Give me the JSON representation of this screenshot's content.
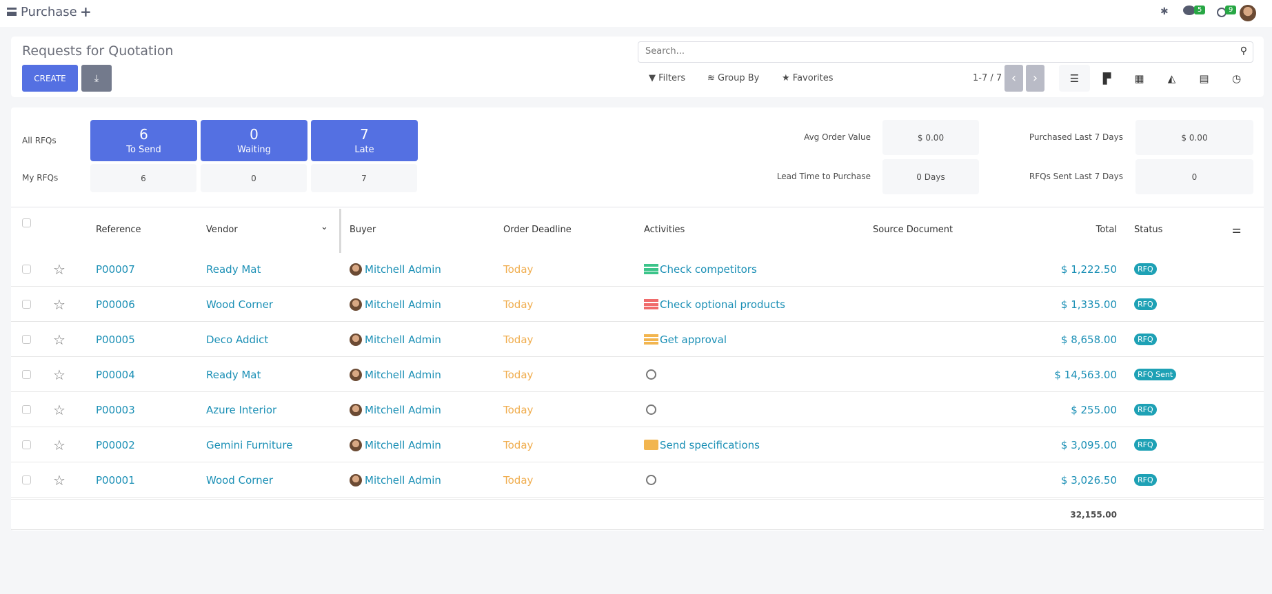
{
  "topbar": {
    "app_title": "Purchase",
    "notifications": {
      "messages": "5",
      "activities": "9"
    }
  },
  "control_panel": {
    "title": "Requests for Quotation",
    "create_label": "CREATE",
    "search_placeholder": "Search...",
    "filters_label": "Filters",
    "group_by_label": "Group By",
    "favorites_label": "Favorites",
    "pager": "1-7 / 7",
    "views": [
      "list",
      "kanban",
      "pivot",
      "graph",
      "calendar",
      "activity"
    ],
    "active_view": "list"
  },
  "dashboard": {
    "all_label": "All RFQs",
    "my_label": "My RFQs",
    "tiles": [
      {
        "count": "6",
        "label": "To Send",
        "mine": "6"
      },
      {
        "count": "0",
        "label": "Waiting",
        "mine": "0"
      },
      {
        "count": "7",
        "label": "Late",
        "mine": "7"
      }
    ],
    "kpis": [
      {
        "label": "Avg Order Value",
        "value": "$ 0.00"
      },
      {
        "label": "Purchased Last 7 Days",
        "value": "$ 0.00"
      },
      {
        "label": "Lead Time to Purchase",
        "value": "0 Days"
      },
      {
        "label": "RFQs Sent Last 7 Days",
        "value": "0"
      }
    ]
  },
  "table": {
    "columns": {
      "reference": "Reference",
      "vendor": "Vendor",
      "buyer": "Buyer",
      "deadline": "Order Deadline",
      "activities": "Activities",
      "source": "Source Document",
      "total": "Total",
      "status": "Status"
    },
    "rows": [
      {
        "reference": "P00007",
        "vendor": "Ready Mat",
        "buyer": "Mitchell Admin",
        "deadline": "Today",
        "activity": "Check competitors",
        "activity_icon": "list-icon",
        "activity_color": "#3cc48a",
        "total": "$ 1,222.50",
        "status": "RFQ"
      },
      {
        "reference": "P00006",
        "vendor": "Wood Corner",
        "buyer": "Mitchell Admin",
        "deadline": "Today",
        "activity": "Check optional products",
        "activity_icon": "list-icon",
        "activity_color": "#f06b6b",
        "total": "$ 1,335.00",
        "status": "RFQ"
      },
      {
        "reference": "P00005",
        "vendor": "Deco Addict",
        "buyer": "Mitchell Admin",
        "deadline": "Today",
        "activity": "Get approval",
        "activity_icon": "list-icon",
        "activity_color": "#f2b54f",
        "total": "$ 8,658.00",
        "status": "RFQ"
      },
      {
        "reference": "P00004",
        "vendor": "Ready Mat",
        "buyer": "Mitchell Admin",
        "deadline": "Today",
        "activity": "",
        "activity_icon": "clock-icon",
        "total": "$ 14,563.00",
        "status": "RFQ Sent"
      },
      {
        "reference": "P00003",
        "vendor": "Azure Interior",
        "buyer": "Mitchell Admin",
        "deadline": "Today",
        "activity": "",
        "activity_icon": "clock-icon",
        "total": "$ 255.00",
        "status": "RFQ"
      },
      {
        "reference": "P00002",
        "vendor": "Gemini Furniture",
        "buyer": "Mitchell Admin",
        "deadline": "Today",
        "activity": "Send specifications",
        "activity_icon": "envelope-icon",
        "activity_color": "#f2b54f",
        "total": "$ 3,095.00",
        "status": "RFQ"
      },
      {
        "reference": "P00001",
        "vendor": "Wood Corner",
        "buyer": "Mitchell Admin",
        "deadline": "Today",
        "activity": "",
        "activity_icon": "clock-icon",
        "total": "$ 3,026.50",
        "status": "RFQ"
      }
    ],
    "sum_total": "32,155.00"
  },
  "colors": {
    "primary": "#5470e2",
    "link": "#1a8fb5",
    "deadline_today": "#f0ad4e",
    "status_badge": "#1ea1b5",
    "notif_badge": "#28a745"
  }
}
